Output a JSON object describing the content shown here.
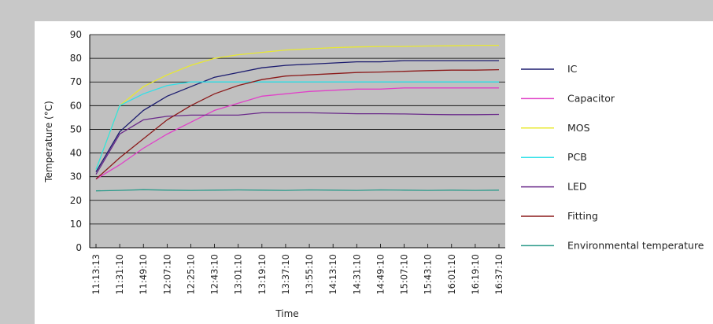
{
  "chart_data": {
    "type": "line",
    "xlabel": "Time",
    "ylabel": "Temperature (°C)",
    "ylim": [
      0,
      90
    ],
    "yticks": [
      0,
      10,
      20,
      30,
      40,
      50,
      60,
      70,
      80,
      90
    ],
    "grid": true,
    "legend_position": "right",
    "plot_background": "#c0c0c0",
    "categories": [
      "11:13:13",
      "11:31:10",
      "11:49:10",
      "12:07:10",
      "12:25:10",
      "12:43:10",
      "13:01:10",
      "13:19:10",
      "13:37:10",
      "13:55:10",
      "14:13:10",
      "14:31:10",
      "14:49:10",
      "15:07:10",
      "15:43:10",
      "16:01:10",
      "16:19:10",
      "16:37:10"
    ],
    "series": [
      {
        "name": "IC",
        "color": "#1a1a6e",
        "values": [
          32,
          49,
          58,
          64,
          68,
          72,
          74,
          76,
          77,
          77.5,
          78,
          78.5,
          78.5,
          79,
          79,
          79,
          79,
          79
        ]
      },
      {
        "name": "Capacitor",
        "color": "#e040c8",
        "values": [
          29,
          35,
          42,
          48,
          53,
          58,
          61,
          64,
          65,
          66,
          66.5,
          67,
          67,
          67.5,
          67.5,
          67.5,
          67.5,
          67.5
        ]
      },
      {
        "name": "MOS",
        "color": "#e8e830",
        "values": [
          33,
          60,
          68,
          73,
          77,
          80,
          81.5,
          82.5,
          83.5,
          84,
          84.5,
          84.8,
          85,
          85,
          85.2,
          85.3,
          85.5,
          85.5
        ]
      },
      {
        "name": "PCB",
        "color": "#30e0e8",
        "values": [
          33,
          60,
          65,
          68.5,
          70,
          70,
          70,
          70,
          70,
          70,
          70,
          70,
          70,
          70,
          70,
          70,
          70,
          70
        ]
      },
      {
        "name": "LED",
        "color": "#6a2a8a",
        "values": [
          31,
          48,
          54,
          55.5,
          56,
          56,
          56,
          57,
          57,
          57,
          56.8,
          56.6,
          56.6,
          56.5,
          56.3,
          56.2,
          56.2,
          56.3
        ]
      },
      {
        "name": "Fitting",
        "color": "#8b1a1a",
        "values": [
          29,
          38,
          46,
          54,
          60,
          65,
          68.5,
          71,
          72.5,
          73,
          73.5,
          74,
          74.2,
          74.5,
          74.8,
          75,
          75,
          75.2
        ]
      },
      {
        "name": "Environmental temperature",
        "color": "#2a9a8a",
        "values": [
          24,
          24.2,
          24.5,
          24.3,
          24.2,
          24.3,
          24.4,
          24.3,
          24.2,
          24.4,
          24.3,
          24.2,
          24.4,
          24.3,
          24.2,
          24.3,
          24.2,
          24.3
        ]
      }
    ]
  }
}
